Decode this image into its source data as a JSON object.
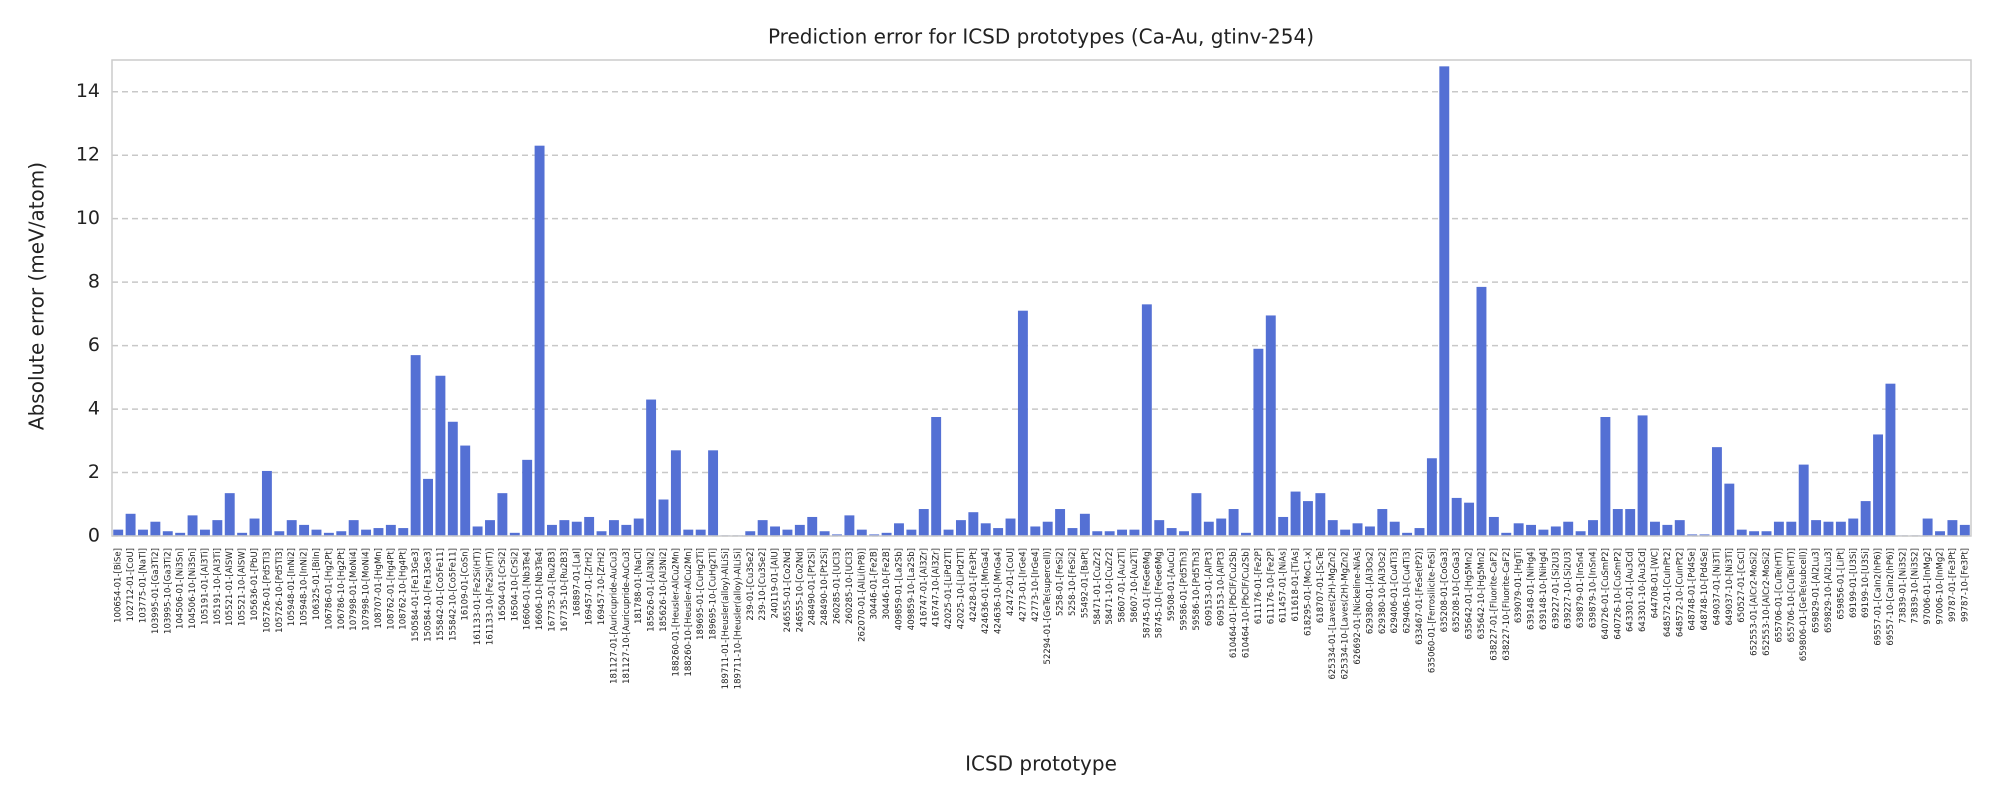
{
  "chart_data": {
    "type": "bar",
    "title": "Prediction error for ICSD prototypes (Ca-Au, gtinv-254)",
    "xlabel": "ICSD prototype",
    "ylabel": "Absolute error (meV/atom)",
    "color": "#5470d4",
    "grid": true,
    "ylim": [
      0,
      15
    ],
    "yticks": [
      0,
      2,
      4,
      6,
      8,
      10,
      12,
      14
    ],
    "categories": [
      "100654-01-[BiSe]",
      "102712-01-[CoU]",
      "103775-01-[NaTl]",
      "103995-01-[Ga3Ti2]",
      "103995-10-[Ga3Ti2]",
      "104506-01-[Ni3Sn]",
      "104506-10-[Ni3Sn]",
      "105191-01-[Al3Ti]",
      "105191-10-[Al3Ti]",
      "105521-01-[AlSW]",
      "105521-10-[AlSW]",
      "105636-01-[PbU]",
      "105726-01-[Pd5Tl3]",
      "105726-10-[Pd5Tl3]",
      "105948-01-[InNi2]",
      "105948-10-[InNi2]",
      "106325-01-[BiIn]",
      "106786-01-[Hg2Pt]",
      "106786-10-[Hg2Pt]",
      "107998-01-[MoNi4]",
      "107998-10-[MoNi4]",
      "108707-01-[HgMn]",
      "108762-01-[Hg4Pt]",
      "108762-10-[Hg4Pt]",
      "150584-01-[Fe13Ge3]",
      "150584-10-[Fe13Ge3]",
      "155842-01-[Co5Fe11]",
      "155842-10-[Co5Fe11]",
      "16109-01-[CoSn]",
      "161133-01-[Fe2Si(HT)]",
      "161133-10-[Fe2Si(HT)]",
      "16504-01-[CrSi2]",
      "16504-10-[CrSi2]",
      "16606-01-[Nb3Te4]",
      "16606-10-[Nb3Te4]",
      "167735-01-[Ru2B3]",
      "167735-10-[Ru2B3]",
      "168897-01-[LaI]",
      "169457-01-[ZrH2]",
      "169457-10-[ZrH2]",
      "181127-01-[Auricupride-AuCu3]",
      "181127-10-[Auricupride-AuCu3]",
      "181788-01-[NaCl]",
      "185626-01-[Al3Ni2]",
      "185626-10-[Al3Ni2]",
      "188260-01-[Heusler-AlCu2Mn]",
      "188260-10-[Heusler-AlCu2Mn]",
      "189695-01-[CuHg2Ti]",
      "189695-10-[CuHg2Ti]",
      "189711-01-[Heusler(alloy)-AlLiSi]",
      "189711-10-[Heusler(alloy)-AlLiSi]",
      "239-01-[Cu3Se2]",
      "239-10-[Cu3Se2]",
      "240119-01-[AlU]",
      "246555-01-[Co2Nd]",
      "246555-10-[Co2Nd]",
      "248490-01-[Pt2Si]",
      "248490-10-[Pt2Si]",
      "260285-01-[UCl3]",
      "260285-10-[UCl3]",
      "262070-01-[AlLi(hP8)]",
      "30446-01-[Fe2B]",
      "30446-10-[Fe2B]",
      "409859-01-[La2Sb]",
      "409859-10-[La2Sb]",
      "416747-01-[Al3Zr]",
      "416747-10-[Al3Zr]",
      "42025-01-[LiPd2Tl]",
      "42025-10-[LiPd2Tl]",
      "42428-01-[Fe3Pt]",
      "424636-01-[MnGa4]",
      "424636-10-[MnGa4]",
      "42472-01-[CoU]",
      "42773-01-[IrGe4]",
      "42773-10-[IrGe4]",
      "52294-01-[GeTe(supercell)]",
      "5258-01-[FeSi2]",
      "5258-10-[FeSi2]",
      "55492-01-[BaPt]",
      "58471-01-[CuZr2]",
      "58471-10-[CuZr2]",
      "58607-01-[Au2Ti]",
      "58607-10-[Au2Ti]",
      "58745-01-[FeGe6Mg]",
      "58745-10-[FeGe6Mg]",
      "59508-01-[AuCu]",
      "59586-01-[Pd5Th3]",
      "59586-10-[Pd5Th3]",
      "609153-01-[AlPt3]",
      "609153-10-[AlPt3]",
      "610464-01-[PbClF/Cu2Sb]",
      "610464-10-[PbClF/Cu2Sb]",
      "611176-01-[Fe2P]",
      "611176-10-[Fe2P]",
      "611457-01-[NiAs]",
      "611618-01-[TiAs]",
      "618295-01-[MoC1-x]",
      "618707-01-[ScTe]",
      "625334-01-[Laves(2H)-MgZn2]",
      "625334-10-[Laves(2H)-MgZn2]",
      "626692-01-[Nickeline-NiAs]",
      "629380-01-[Al3Os2]",
      "629380-10-[Al3Os2]",
      "629406-01-[Cu4Ti3]",
      "629406-10-[Cu4Ti3]",
      "633467-01-[FeSe(tP2)]",
      "635060-01-[Ferrosilicite-FeSi]",
      "635208-01-[CoGa3]",
      "635208-10-[CoGa3]",
      "635642-01-[Hg5Mn2]",
      "635642-10-[Hg5Mn2]",
      "638227-01-[Fluorite-CaF2]",
      "638227-10-[Fluorite-CaF2]",
      "639079-01-[HgTi]",
      "639148-01-[NiHg4]",
      "639148-10-[NiHg4]",
      "639227-01-[Si2U3]",
      "639227-10-[Si2U3]",
      "639879-01-[InSn4]",
      "639879-10-[InSn4]",
      "640726-01-[CuSmP2]",
      "640726-10-[CuSmP2]",
      "643301-01-[Au3Cd]",
      "643301-10-[Au3Cd]",
      "644708-01-[WC]",
      "648572-01-[CuInPt2]",
      "648572-10-[CuInPt2]",
      "648748-01-[Pd4Se]",
      "648748-10-[Pd4Se]",
      "649037-01-[Ni3Ti]",
      "649037-10-[Ni3Ti]",
      "650527-01-[CsCl]",
      "652553-01-[AlCr2-MoSi2]",
      "652553-10-[AlCr2-MoSi2]",
      "655706-01-[CuTe(HT)]",
      "655706-10-[CuTe(HT)]",
      "659806-01-[GeTe(subcell)]",
      "659829-01-[Al2Lu3]",
      "659829-10-[Al2Lu3]",
      "659856-01-[LiPt]",
      "69199-01-[U3Si]",
      "69199-10-[U3Si]",
      "69557-01-[CaIn2(hP6)]",
      "69557-10-[CaIn2(hP6)]",
      "73839-01-[Ni3S2]",
      "73839-10-[Ni3S2]",
      "97006-01-[InMg2]",
      "97006-10-[InMg2]",
      "99787-01-[Fe3Pt]",
      "99787-10-[Fe3Pt]"
    ],
    "values": [
      0.2,
      0.7,
      0.2,
      0.45,
      0.15,
      0.1,
      0.65,
      0.2,
      0.5,
      1.35,
      0.1,
      0.55,
      2.05,
      0.15,
      0.5,
      0.35,
      0.2,
      0.1,
      0.15,
      0.5,
      0.2,
      0.25,
      0.35,
      0.25,
      5.7,
      1.8,
      5.05,
      3.6,
      2.85,
      0.3,
      0.5,
      1.35,
      0.1,
      2.4,
      12.3,
      0.35,
      0.5,
      0.45,
      0.6,
      0.15,
      0.5,
      0.35,
      0.55,
      4.3,
      1.15,
      2.7,
      0.2,
      0.2,
      2.7,
      0.02,
      0.02,
      0.15,
      0.5,
      0.3,
      0.2,
      0.35,
      0.6,
      0.15,
      0.05,
      0.65,
      0.2,
      0.05,
      0.1,
      0.4,
      0.2,
      0.85,
      3.75,
      0.2,
      0.5,
      0.75,
      0.4,
      0.25,
      0.55,
      7.1,
      0.3,
      0.45,
      0.85,
      0.25,
      0.7,
      0.15,
      0.15,
      0.2,
      0.2,
      7.3,
      0.5,
      0.25,
      0.15,
      1.35,
      0.45,
      0.55,
      0.85,
      0.1,
      5.9,
      6.95,
      0.6,
      1.4,
      1.1,
      1.35,
      0.5,
      0.2,
      0.4,
      0.3,
      0.85,
      0.45,
      0.1,
      0.25,
      2.45,
      14.8,
      1.2,
      1.05,
      7.85,
      0.6,
      0.1,
      0.4,
      0.35,
      0.2,
      0.3,
      0.45,
      0.15,
      0.5,
      3.75,
      0.85,
      0.85,
      3.8,
      0.45,
      0.35,
      0.5,
      0.05,
      0.05,
      2.8,
      1.65,
      0.2,
      0.15,
      0.15,
      0.45,
      0.45,
      2.25,
      0.5,
      0.45,
      0.45,
      0.55,
      1.1,
      3.2,
      4.8,
      0.02,
      0.02,
      0.55,
      0.15,
      0.5,
      0.35
    ]
  }
}
